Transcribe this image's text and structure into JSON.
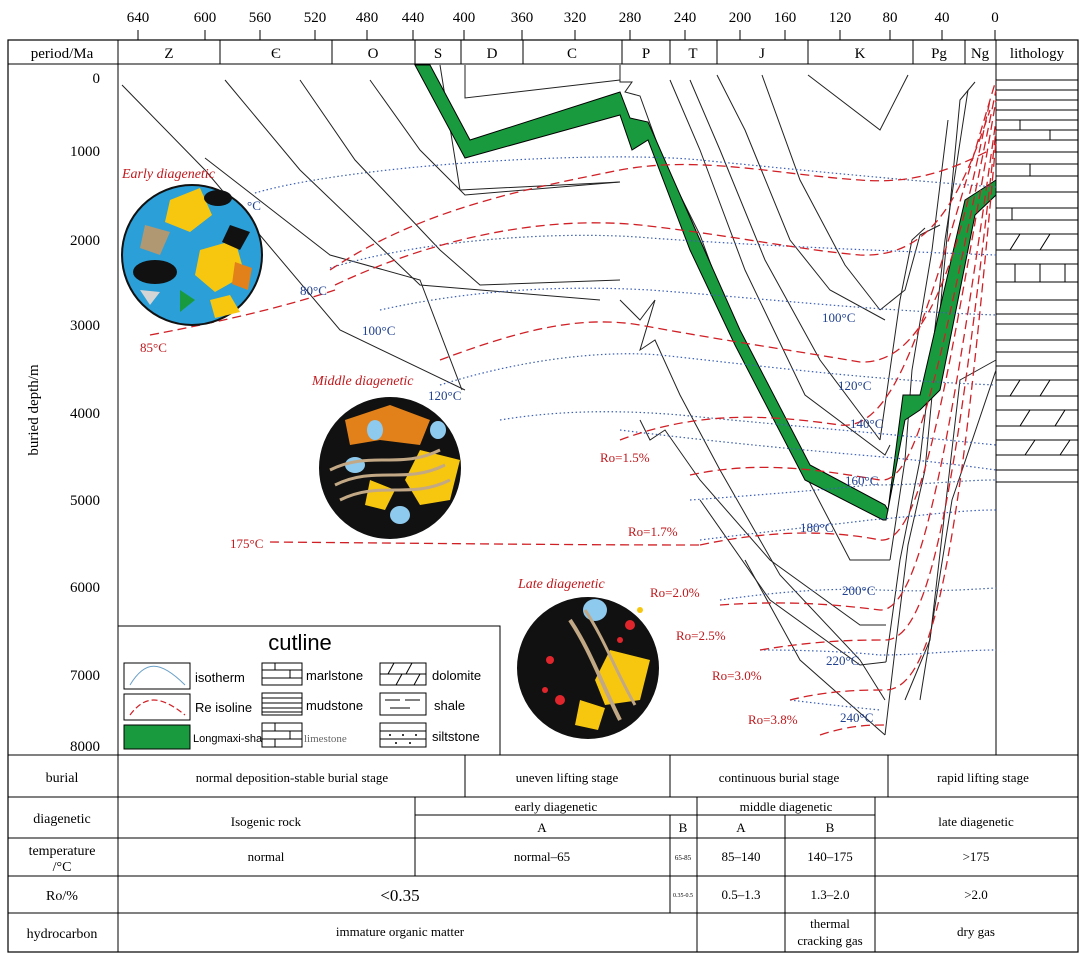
{
  "top_axis": {
    "ticks": [
      "640",
      "600",
      "560",
      "520",
      "480",
      "440",
      "400",
      "360",
      "320",
      "280",
      "240",
      "200",
      "160",
      "120",
      "80",
      "40",
      "0"
    ]
  },
  "periods": {
    "header": "period/Ma",
    "items": [
      "Z",
      "Є",
      "O",
      "S",
      "D",
      "C",
      "P",
      "T",
      "J",
      "K",
      "Pg",
      "Ng"
    ],
    "lithology": "lithology"
  },
  "depth_axis": {
    "label": "buried depth/m",
    "ticks": [
      "0",
      "1000",
      "2000",
      "3000",
      "4000",
      "5000",
      "6000",
      "7000",
      "8000"
    ]
  },
  "isotherms": [
    "80°C",
    "100°C",
    "100°C",
    "120°C",
    "120°C",
    "140°C",
    "160°C",
    "180°C",
    "200°C",
    "220°C",
    "240°C"
  ],
  "temp_marks": {
    "t85": "85°C",
    "t175": "175°C",
    "small_c": "°C"
  },
  "ro_labels": [
    "Ro=1.5%",
    "Ro=1.7%",
    "Ro=2.0%",
    "Ro=2.5%",
    "Ro=3.0%",
    "Ro=3.8%"
  ],
  "stages": [
    "Early diagenetic",
    "Middle diagenetic",
    "Late diagenetic"
  ],
  "legend": {
    "title": "cutline",
    "items": [
      "isotherm",
      "Re isoline",
      "Longmaxi-shale",
      "marlstone",
      "mudstone",
      "limestone",
      "dolomite",
      "shale",
      "siltstone"
    ]
  },
  "table": {
    "row_labels": [
      "burial",
      "diagenetic",
      "temperature",
      "/°C",
      "Ro/%",
      "hydrocarbon"
    ],
    "burial": [
      "normal deposition-stable burial stage",
      "uneven lifting stage",
      "continuous burial stage",
      "rapid lifting stage"
    ],
    "diagenetic": {
      "isogenic": "Isogenic rock",
      "early": "early diagenetic",
      "early_a": "A",
      "early_b": "B",
      "middle": "middle diagenetic",
      "mid_a": "A",
      "mid_b": "B",
      "late": "late diagenetic"
    },
    "temperature": [
      "normal",
      "normal–65",
      "65-85",
      "85–140",
      "140–175",
      ">175"
    ],
    "ro": [
      "<0.35",
      "0.35-0.5",
      "0.5–1.3",
      "1.3–2.0",
      ">2.0"
    ],
    "hydrocarbon": [
      "immature organic matter",
      "thermal",
      "cracking gas",
      "dry gas"
    ]
  },
  "colors": {
    "green": "#1a9a3e",
    "red": "#c0181c",
    "blue": "#1f3f8f"
  }
}
